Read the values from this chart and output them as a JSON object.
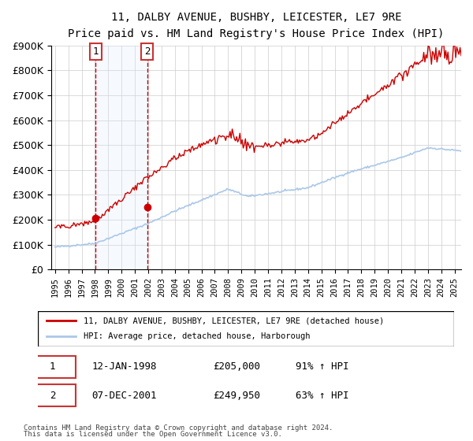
{
  "title": "11, DALBY AVENUE, BUSHBY, LEICESTER, LE7 9RE",
  "subtitle": "Price paid vs. HM Land Registry's House Price Index (HPI)",
  "ylabel": "",
  "ylim": [
    0,
    900000
  ],
  "yticks": [
    0,
    100000,
    200000,
    300000,
    400000,
    500000,
    600000,
    700000,
    800000,
    900000
  ],
  "ytick_labels": [
    "£0",
    "£100K",
    "£200K",
    "£300K",
    "£400K",
    "£500K",
    "£600K",
    "£700K",
    "£800K",
    "£900K"
  ],
  "sale1_date": "1998-01-12",
  "sale1_price": 205000,
  "sale1_label": "1",
  "sale2_date": "2001-12-07",
  "sale2_price": 249950,
  "sale2_label": "2",
  "legend_house": "11, DALBY AVENUE, BUSHBY, LEICESTER, LE7 9RE (detached house)",
  "legend_hpi": "HPI: Average price, detached house, Harborough",
  "table_row1": [
    "1",
    "12-JAN-1998",
    "£205,000",
    "91% ↑ HPI"
  ],
  "table_row2": [
    "2",
    "07-DEC-2001",
    "£249,950",
    "63% ↑ HPI"
  ],
  "footnote1": "Contains HM Land Registry data © Crown copyright and database right 2024.",
  "footnote2": "This data is licensed under the Open Government Licence v3.0.",
  "house_color": "#cc0000",
  "hpi_color": "#aac8e8",
  "shade_color": "#ddeeff",
  "dashed_color": "#cc0000",
  "background_color": "#ffffff",
  "grid_color": "#cccccc"
}
